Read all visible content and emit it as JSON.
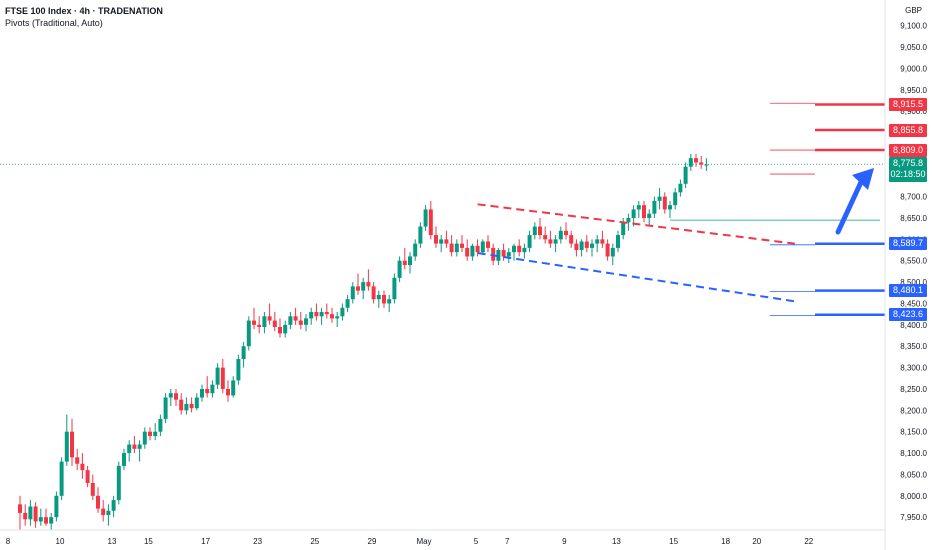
{
  "header": {
    "title": "FTSE 100 Index · 4h · TRADENATION",
    "indicator": "Pivots (Traditional, Auto)",
    "currency": "GBP"
  },
  "price_tags": [
    {
      "name": "tag-8915",
      "value": "8,915.5",
      "price": 8915.5,
      "color": "red"
    },
    {
      "name": "tag-8855",
      "value": "8,855.8",
      "price": 8855.8,
      "color": "red"
    },
    {
      "name": "tag-8809",
      "value": "8,809.0",
      "price": 8809.0,
      "color": "red"
    },
    {
      "name": "tag-8589",
      "value": "8,589.7",
      "price": 8589.7,
      "color": "blue"
    },
    {
      "name": "tag-8480",
      "value": "8,480.1",
      "price": 8480.1,
      "color": "blue"
    },
    {
      "name": "tag-8423",
      "value": "8,423.6",
      "price": 8423.6,
      "color": "blue"
    }
  ],
  "last_price": {
    "value": "8,775.8",
    "price": 8775.8,
    "countdown": "02:18:50"
  },
  "chart_data": {
    "type": "candlestick",
    "title": "FTSE 100 Index · 4h · TRADENATION",
    "ylim": [
      7920,
      9160
    ],
    "y_ticks": [
      7950,
      8000,
      8050,
      8100,
      8150,
      8200,
      8250,
      8300,
      8350,
      8400,
      8450,
      8500,
      8550,
      8600,
      8650,
      8700,
      8750,
      8800,
      8850,
      8900,
      8950,
      9000,
      9050,
      9100
    ],
    "y_tick_labels": [
      "7,950.0",
      "8,000.0",
      "8,050.0",
      "8,100.0",
      "8,150.0",
      "8,200.0",
      "8,250.0",
      "8,300.0",
      "8,350.0",
      "8,400.0",
      "8,450.0",
      "8,500.0",
      "8,550.0",
      "8,600.0",
      "8,650.0",
      "8,700.0",
      "8,750.0",
      "8,800.0",
      "8,850.0",
      "8,900.0",
      "8,950.0",
      "9,000.0",
      "9,050.0",
      "9,100.0"
    ],
    "x_ticks": [
      {
        "label": "8",
        "bar": 0
      },
      {
        "label": "10",
        "bar": 10
      },
      {
        "label": "13",
        "bar": 20
      },
      {
        "label": "15",
        "bar": 27
      },
      {
        "label": "17",
        "bar": 38
      },
      {
        "label": "23",
        "bar": 48
      },
      {
        "label": "25",
        "bar": 59
      },
      {
        "label": "29",
        "bar": 70
      },
      {
        "label": "May",
        "bar": 80
      },
      {
        "label": "5",
        "bar": 90
      },
      {
        "label": "7",
        "bar": 96
      },
      {
        "label": "9",
        "bar": 107
      },
      {
        "label": "13",
        "bar": 117
      },
      {
        "label": "15",
        "bar": 128
      },
      {
        "label": "18",
        "bar": 138
      },
      {
        "label": "20",
        "bar": 144
      },
      {
        "label": "22",
        "bar": 154
      }
    ],
    "candles": [
      [
        7980,
        8000,
        7920,
        7960
      ],
      [
        7960,
        7980,
        7930,
        7945
      ],
      [
        7945,
        7990,
        7930,
        7975
      ],
      [
        7975,
        7985,
        7925,
        7940
      ],
      [
        7940,
        7970,
        7930,
        7950
      ],
      [
        7950,
        7970,
        7930,
        7935
      ],
      [
        7935,
        7960,
        7920,
        7950
      ],
      [
        7950,
        8010,
        7940,
        8000
      ],
      [
        8000,
        8090,
        7990,
        8080
      ],
      [
        8080,
        8190,
        8070,
        8150
      ],
      [
        8150,
        8180,
        8070,
        8090
      ],
      [
        8090,
        8110,
        8060,
        8075
      ],
      [
        8075,
        8100,
        8040,
        8060
      ],
      [
        8060,
        8070,
        8020,
        8030
      ],
      [
        8030,
        8050,
        7990,
        8000
      ],
      [
        8000,
        8020,
        7960,
        7970
      ],
      [
        7970,
        7990,
        7940,
        7955
      ],
      [
        7955,
        7980,
        7930,
        7965
      ],
      [
        7965,
        8000,
        7950,
        7990
      ],
      [
        7990,
        8080,
        7980,
        8070
      ],
      [
        8070,
        8110,
        8060,
        8100
      ],
      [
        8100,
        8130,
        8080,
        8120
      ],
      [
        8120,
        8140,
        8100,
        8110
      ],
      [
        8110,
        8130,
        8080,
        8120
      ],
      [
        8120,
        8160,
        8110,
        8150
      ],
      [
        8150,
        8160,
        8130,
        8140
      ],
      [
        8140,
        8170,
        8130,
        8150
      ],
      [
        8150,
        8190,
        8140,
        8180
      ],
      [
        8180,
        8240,
        8170,
        8230
      ],
      [
        8230,
        8250,
        8210,
        8240
      ],
      [
        8240,
        8250,
        8210,
        8225
      ],
      [
        8225,
        8240,
        8190,
        8200
      ],
      [
        8200,
        8230,
        8190,
        8215
      ],
      [
        8215,
        8230,
        8195,
        8205
      ],
      [
        8205,
        8240,
        8200,
        8230
      ],
      [
        8230,
        8260,
        8220,
        8250
      ],
      [
        8250,
        8280,
        8230,
        8240
      ],
      [
        8240,
        8270,
        8230,
        8260
      ],
      [
        8260,
        8310,
        8250,
        8300
      ],
      [
        8300,
        8320,
        8240,
        8250
      ],
      [
        8250,
        8270,
        8220,
        8235
      ],
      [
        8235,
        8280,
        8230,
        8270
      ],
      [
        8270,
        8330,
        8260,
        8320
      ],
      [
        8320,
        8360,
        8300,
        8350
      ],
      [
        8350,
        8420,
        8340,
        8410
      ],
      [
        8410,
        8440,
        8390,
        8400
      ],
      [
        8400,
        8420,
        8380,
        8395
      ],
      [
        8395,
        8430,
        8380,
        8420
      ],
      [
        8420,
        8450,
        8400,
        8410
      ],
      [
        8410,
        8430,
        8385,
        8395
      ],
      [
        8395,
        8415,
        8370,
        8380
      ],
      [
        8380,
        8410,
        8370,
        8400
      ],
      [
        8400,
        8430,
        8390,
        8420
      ],
      [
        8420,
        8440,
        8400,
        8410
      ],
      [
        8410,
        8430,
        8390,
        8400
      ],
      [
        8400,
        8425,
        8385,
        8415
      ],
      [
        8415,
        8440,
        8400,
        8430
      ],
      [
        8430,
        8450,
        8410,
        8420
      ],
      [
        8420,
        8440,
        8400,
        8430
      ],
      [
        8430,
        8450,
        8415,
        8425
      ],
      [
        8425,
        8440,
        8405,
        8415
      ],
      [
        8415,
        8430,
        8395,
        8420
      ],
      [
        8420,
        8450,
        8410,
        8440
      ],
      [
        8440,
        8470,
        8430,
        8460
      ],
      [
        8460,
        8500,
        8450,
        8490
      ],
      [
        8490,
        8520,
        8470,
        8480
      ],
      [
        8480,
        8510,
        8460,
        8500
      ],
      [
        8500,
        8530,
        8480,
        8490
      ],
      [
        8490,
        8500,
        8450,
        8460
      ],
      [
        8460,
        8480,
        8440,
        8470
      ],
      [
        8470,
        8480,
        8440,
        8450
      ],
      [
        8450,
        8470,
        8430,
        8460
      ],
      [
        8460,
        8520,
        8450,
        8510
      ],
      [
        8510,
        8560,
        8500,
        8550
      ],
      [
        8550,
        8580,
        8530,
        8540
      ],
      [
        8540,
        8570,
        8520,
        8560
      ],
      [
        8560,
        8600,
        8550,
        8590
      ],
      [
        8590,
        8640,
        8580,
        8630
      ],
      [
        8630,
        8680,
        8620,
        8670
      ],
      [
        8670,
        8690,
        8600,
        8610
      ],
      [
        8610,
        8630,
        8580,
        8590
      ],
      [
        8590,
        8610,
        8570,
        8600
      ],
      [
        8600,
        8620,
        8580,
        8590
      ],
      [
        8590,
        8610,
        8560,
        8570
      ],
      [
        8570,
        8600,
        8560,
        8590
      ],
      [
        8590,
        8610,
        8570,
        8580
      ],
      [
        8580,
        8600,
        8550,
        8560
      ],
      [
        8560,
        8590,
        8550,
        8585
      ],
      [
        8585,
        8600,
        8560,
        8570
      ],
      [
        8570,
        8600,
        8565,
        8595
      ],
      [
        8595,
        8610,
        8570,
        8580
      ],
      [
        8580,
        8590,
        8540,
        8550
      ],
      [
        8550,
        8580,
        8540,
        8575
      ],
      [
        8575,
        8590,
        8550,
        8560
      ],
      [
        8560,
        8580,
        8545,
        8570
      ],
      [
        8570,
        8590,
        8550,
        8585
      ],
      [
        8585,
        8600,
        8560,
        8570
      ],
      [
        8570,
        8590,
        8555,
        8580
      ],
      [
        8580,
        8620,
        8570,
        8610
      ],
      [
        8610,
        8640,
        8600,
        8630
      ],
      [
        8630,
        8650,
        8600,
        8610
      ],
      [
        8610,
        8630,
        8590,
        8600
      ],
      [
        8600,
        8620,
        8580,
        8590
      ],
      [
        8590,
        8610,
        8570,
        8600
      ],
      [
        8600,
        8630,
        8590,
        8620
      ],
      [
        8620,
        8640,
        8600,
        8610
      ],
      [
        8610,
        8620,
        8580,
        8590
      ],
      [
        8590,
        8600,
        8560,
        8575
      ],
      [
        8575,
        8600,
        8560,
        8595
      ],
      [
        8595,
        8610,
        8570,
        8580
      ],
      [
        8580,
        8600,
        8560,
        8590
      ],
      [
        8590,
        8610,
        8570,
        8600
      ],
      [
        8600,
        8620,
        8580,
        8590
      ],
      [
        8590,
        8600,
        8550,
        8560
      ],
      [
        8560,
        8590,
        8540,
        8580
      ],
      [
        8580,
        8620,
        8570,
        8610
      ],
      [
        8610,
        8650,
        8600,
        8640
      ],
      [
        8640,
        8660,
        8620,
        8650
      ],
      [
        8650,
        8680,
        8630,
        8670
      ],
      [
        8670,
        8690,
        8650,
        8680
      ],
      [
        8680,
        8690,
        8640,
        8650
      ],
      [
        8650,
        8670,
        8630,
        8660
      ],
      [
        8660,
        8700,
        8650,
        8690
      ],
      [
        8690,
        8720,
        8670,
        8700
      ],
      [
        8700,
        8710,
        8660,
        8670
      ],
      [
        8670,
        8690,
        8650,
        8680
      ],
      [
        8680,
        8720,
        8670,
        8710
      ],
      [
        8710,
        8740,
        8700,
        8730
      ],
      [
        8730,
        8780,
        8720,
        8770
      ],
      [
        8770,
        8800,
        8760,
        8790
      ],
      [
        8790,
        8800,
        8770,
        8780
      ],
      [
        8780,
        8795,
        8765,
        8775
      ],
      [
        8775,
        8790,
        8760,
        8775
      ]
    ]
  }
}
